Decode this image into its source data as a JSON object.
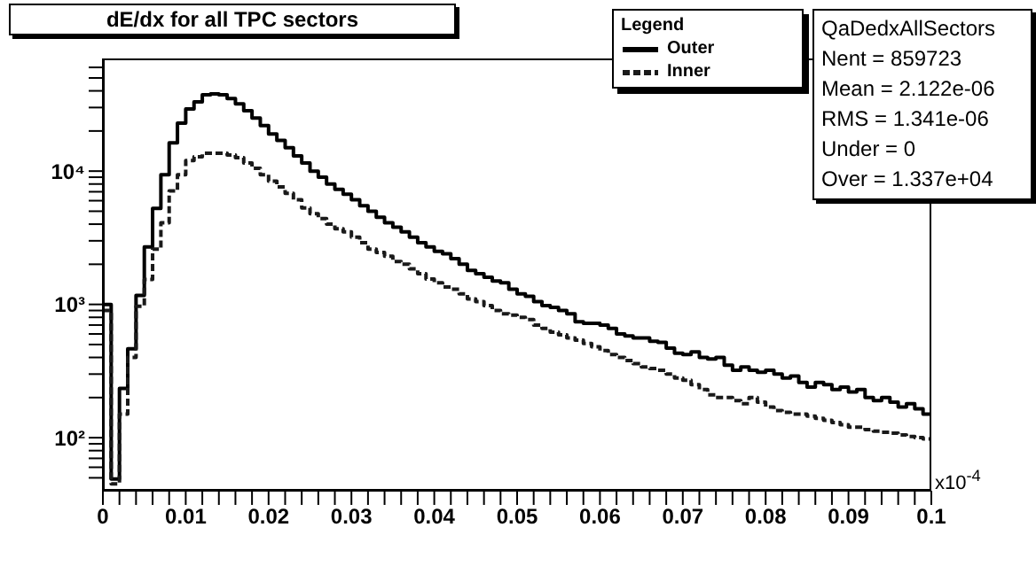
{
  "chart_data": {
    "type": "histogram",
    "title": "dE/dx for all TPC sectors",
    "xlabel": "x10$^{-4}$",
    "legend_title": "Legend",
    "legend": "top right",
    "log": "y",
    "grid": false,
    "bins": [
      0,
      0.001,
      0.002,
      0.003,
      0.004,
      0.005,
      0.006,
      0.007,
      0.008,
      0.009,
      0.01,
      0.011,
      0.012,
      0.013,
      0.014,
      0.015,
      0.016,
      0.017,
      0.018,
      0.019,
      0.02,
      0.021,
      0.022,
      0.023,
      0.024,
      0.025,
      0.026,
      0.027,
      0.028,
      0.029,
      0.03,
      0.031,
      0.032,
      0.033,
      0.034,
      0.035,
      0.036,
      0.037,
      0.038,
      0.039,
      0.04,
      0.041,
      0.042,
      0.043,
      0.044,
      0.045,
      0.046,
      0.047,
      0.048,
      0.049,
      0.05,
      0.051,
      0.052,
      0.053,
      0.054,
      0.055,
      0.056,
      0.057,
      0.058,
      0.059,
      0.06,
      0.061,
      0.062,
      0.063,
      0.064,
      0.065,
      0.066,
      0.067,
      0.068,
      0.069,
      0.07,
      0.071,
      0.072,
      0.073,
      0.074,
      0.075,
      0.076,
      0.077,
      0.078,
      0.079,
      0.08,
      0.081,
      0.082,
      0.083,
      0.084,
      0.085,
      0.086,
      0.087,
      0.088,
      0.089,
      0.09,
      0.091,
      0.092,
      0.093,
      0.094,
      0.095,
      0.096,
      0.097,
      0.098,
      0.099,
      0.1
    ],
    "series": [
      {
        "name": "Outer",
        "color": "#000000",
        "line_style": "solid",
        "values": [
          1000,
          49,
          234,
          465,
          1170,
          2700,
          5250,
          9400,
          16300,
          22900,
          29300,
          33100,
          37400,
          38000,
          37400,
          35000,
          32000,
          28400,
          25000,
          22000,
          19000,
          17000,
          15000,
          13000,
          11500,
          10000,
          9000,
          8000,
          7300,
          6700,
          6100,
          5500,
          5000,
          4500,
          4100,
          3800,
          3500,
          3200,
          2900,
          2700,
          2500,
          2400,
          2200,
          2000,
          1800,
          1700,
          1600,
          1500,
          1450,
          1300,
          1200,
          1150,
          1050,
          980,
          950,
          900,
          850,
          740,
          720,
          720,
          700,
          660,
          600,
          580,
          560,
          560,
          530,
          520,
          470,
          430,
          420,
          440,
          400,
          390,
          400,
          350,
          320,
          340,
          320,
          310,
          320,
          300,
          280,
          290,
          260,
          240,
          260,
          250,
          230,
          240,
          220,
          230,
          200,
          190,
          200,
          185,
          170,
          180,
          165,
          150
        ]
      },
      {
        "name": "Inner",
        "color": "#1a1a1a",
        "line_style": "dashed",
        "values": [
          900,
          45,
          150,
          400,
          970,
          1540,
          2600,
          4100,
          7100,
          9400,
          12000,
          12800,
          13600,
          13600,
          13600,
          13200,
          12600,
          11500,
          10500,
          9400,
          8400,
          7600,
          6800,
          6100,
          5300,
          4800,
          4400,
          4000,
          3700,
          3500,
          3200,
          2900,
          2600,
          2450,
          2300,
          2100,
          2000,
          1850,
          1700,
          1550,
          1450,
          1350,
          1300,
          1200,
          1100,
          1050,
          980,
          900,
          850,
          830,
          800,
          770,
          700,
          660,
          620,
          590,
          560,
          540,
          510,
          480,
          450,
          420,
          400,
          380,
          360,
          340,
          330,
          320,
          300,
          280,
          270,
          250,
          230,
          210,
          200,
          200,
          190,
          180,
          200,
          185,
          170,
          160,
          155,
          150,
          150,
          145,
          140,
          135,
          130,
          125,
          120,
          120,
          115,
          112,
          110,
          108,
          105,
          102,
          100,
          98
        ]
      }
    ],
    "xlim": [
      0,
      0.1
    ],
    "xticks": [
      0,
      {
        "value": 0.002,
        "label": null
      },
      {
        "value": 0.004,
        "label": null
      },
      {
        "value": 0.006,
        "label": null
      },
      {
        "value": 0.008,
        "label": null
      },
      0.01,
      {
        "value": 0.012,
        "label": null
      },
      {
        "value": 0.014,
        "label": null
      },
      {
        "value": 0.016,
        "label": null
      },
      {
        "value": 0.018,
        "label": null
      },
      0.02,
      {
        "value": 0.022,
        "label": null
      },
      {
        "value": 0.024,
        "label": null
      },
      {
        "value": 0.026,
        "label": null
      },
      {
        "value": 0.028,
        "label": null
      },
      0.03,
      {
        "value": 0.032,
        "label": null
      },
      {
        "value": 0.034,
        "label": null
      },
      {
        "value": 0.036,
        "label": null
      },
      {
        "value": 0.038,
        "label": null
      },
      0.04,
      {
        "value": 0.042,
        "label": null
      },
      {
        "value": 0.044,
        "label": null
      },
      {
        "value": 0.046,
        "label": null
      },
      {
        "value": 0.048,
        "label": null
      },
      0.05,
      {
        "value": 0.052,
        "label": null
      },
      {
        "value": 0.054,
        "label": null
      },
      {
        "value": 0.056,
        "label": null
      },
      {
        "value": 0.058,
        "label": null
      },
      0.06,
      {
        "value": 0.062,
        "label": null
      },
      {
        "value": 0.064,
        "label": null
      },
      {
        "value": 0.066,
        "label": null
      },
      {
        "value": 0.068,
        "label": null
      },
      0.07,
      {
        "value": 0.072,
        "label": null
      },
      {
        "value": 0.074,
        "label": null
      },
      {
        "value": 0.076,
        "label": null
      },
      {
        "value": 0.078,
        "label": null
      },
      0.08,
      {
        "value": 0.082,
        "label": null
      },
      {
        "value": 0.084,
        "label": null
      },
      {
        "value": 0.086,
        "label": null
      },
      {
        "value": 0.088,
        "label": null
      },
      0.09,
      {
        "value": 0.092,
        "label": null
      },
      {
        "value": 0.094,
        "label": null
      },
      {
        "value": 0.096,
        "label": null
      },
      {
        "value": 0.098,
        "label": null
      },
      0.1
    ],
    "ylim": [
      40,
      70000
    ],
    "yticks": [
      {
        "value": 50,
        "label": null
      },
      {
        "value": 60,
        "label": null
      },
      {
        "value": 70,
        "label": null
      },
      {
        "value": 80,
        "label": null
      },
      {
        "value": 90,
        "label": null
      },
      {
        "value": 100,
        "label": "10²"
      },
      {
        "value": 200,
        "label": null
      },
      {
        "value": 300,
        "label": null
      },
      {
        "value": 400,
        "label": null
      },
      {
        "value": 500,
        "label": null
      },
      {
        "value": 600,
        "label": null
      },
      {
        "value": 700,
        "label": null
      },
      {
        "value": 800,
        "label": null
      },
      {
        "value": 900,
        "label": null
      },
      {
        "value": 1000,
        "label": "10³"
      },
      {
        "value": 2000,
        "label": null
      },
      {
        "value": 3000,
        "label": null
      },
      {
        "value": 4000,
        "label": null
      },
      {
        "value": 5000,
        "label": null
      },
      {
        "value": 6000,
        "label": null
      },
      {
        "value": 7000,
        "label": null
      },
      {
        "value": 8000,
        "label": null
      },
      {
        "value": 9000,
        "label": null
      },
      {
        "value": 10000,
        "label": "10⁴"
      },
      {
        "value": 20000,
        "label": null
      },
      {
        "value": 30000,
        "label": null
      },
      {
        "value": 40000,
        "label": null
      },
      {
        "value": 50000,
        "label": null
      },
      {
        "value": 60000,
        "label": null
      }
    ],
    "annotations": [
      "QaDedxAllSectors",
      "Nent = 859723",
      "Mean = 2.122e-06",
      "RMS = 1.341e-06",
      "Under = 0",
      "Over = 1.337e+04"
    ]
  }
}
